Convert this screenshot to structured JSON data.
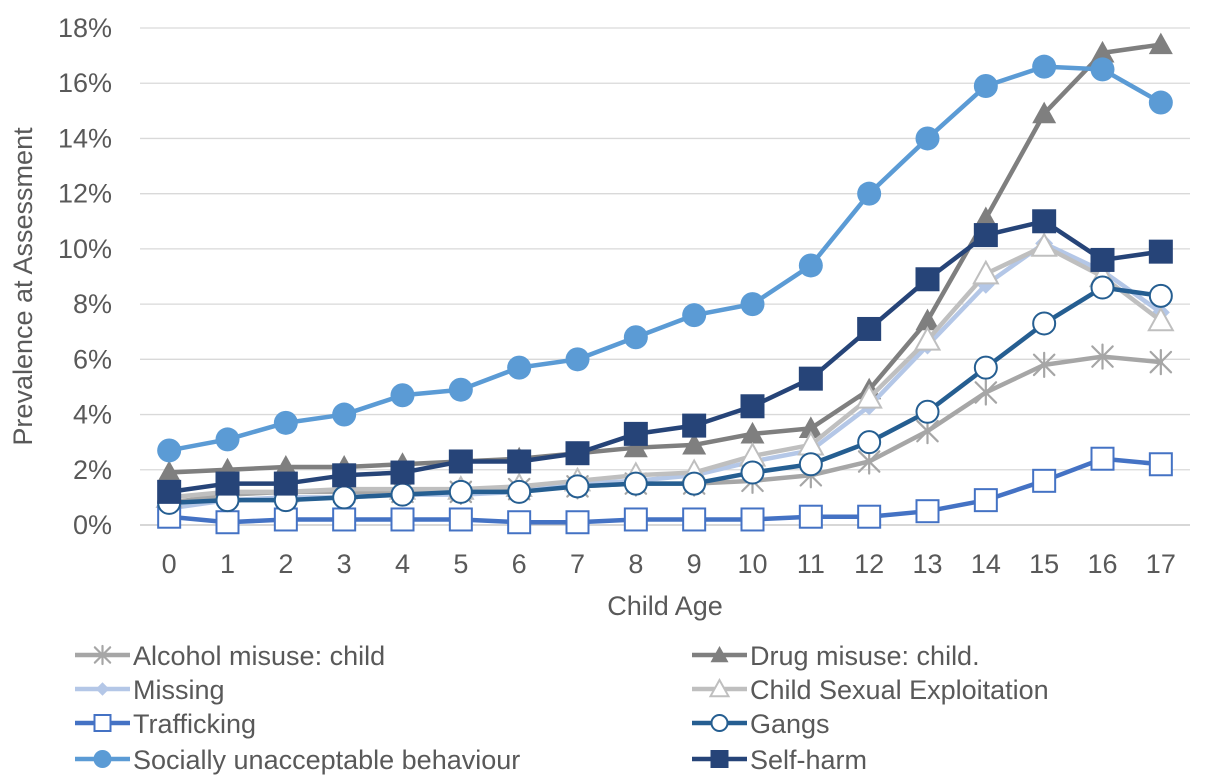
{
  "chart_data": {
    "type": "line",
    "title": "",
    "xlabel": "Child Age",
    "ylabel": "Prevalence at Assessment",
    "x": [
      "0",
      "1",
      "2",
      "3",
      "4",
      "5",
      "6",
      "7",
      "8",
      "9",
      "10",
      "11",
      "12",
      "13",
      "14",
      "15",
      "16",
      "17"
    ],
    "ylim": [
      0,
      18
    ],
    "yticks": [
      0,
      2,
      4,
      6,
      8,
      10,
      12,
      14,
      16,
      18
    ],
    "ytick_labels": [
      "0%",
      "2%",
      "4%",
      "6%",
      "8%",
      "10%",
      "12%",
      "14%",
      "16%",
      "18%"
    ],
    "grid": "horizontal",
    "legend_position": "bottom",
    "series": [
      {
        "name": "Alcohol misuse: child",
        "color": "#a6a6a6",
        "marker": "asterisk",
        "values": [
          0.8,
          1.1,
          1.2,
          1.2,
          1.2,
          1.2,
          1.3,
          1.4,
          1.5,
          1.5,
          1.6,
          1.8,
          2.3,
          3.4,
          4.8,
          5.8,
          6.1,
          5.9
        ]
      },
      {
        "name": "Drug misuse: child.",
        "color": "#7f7f7f",
        "marker": "triangle",
        "values": [
          1.9,
          2.0,
          2.1,
          2.1,
          2.2,
          2.3,
          2.4,
          2.6,
          2.8,
          2.9,
          3.3,
          3.5,
          4.9,
          7.4,
          11.1,
          14.9,
          17.1,
          17.4
        ]
      },
      {
        "name": "Missing",
        "color": "#b4c7e7",
        "marker": "diamond",
        "values": [
          0.6,
          0.9,
          1.0,
          1.0,
          1.1,
          1.1,
          1.2,
          1.5,
          1.6,
          1.8,
          2.3,
          2.7,
          4.3,
          6.5,
          8.7,
          10.2,
          9.2,
          7.7
        ]
      },
      {
        "name": "Child Sexual Exploitation",
        "color": "#bfbfbf",
        "marker": "triangle-open",
        "values": [
          1.0,
          1.2,
          1.2,
          1.3,
          1.3,
          1.3,
          1.4,
          1.6,
          1.8,
          1.9,
          2.5,
          2.9,
          4.6,
          6.7,
          9.1,
          10.1,
          9.0,
          7.4
        ]
      },
      {
        "name": "Trafficking",
        "color": "#4472c4",
        "marker": "square-open",
        "values": [
          0.3,
          0.1,
          0.2,
          0.2,
          0.2,
          0.2,
          0.1,
          0.1,
          0.2,
          0.2,
          0.2,
          0.3,
          0.3,
          0.5,
          0.9,
          1.6,
          2.4,
          2.2
        ]
      },
      {
        "name": "Gangs",
        "color": "#255e91",
        "marker": "circle-open",
        "values": [
          0.8,
          0.9,
          0.9,
          1.0,
          1.1,
          1.2,
          1.2,
          1.4,
          1.5,
          1.5,
          1.9,
          2.2,
          3.0,
          4.1,
          5.7,
          7.3,
          8.6,
          8.3
        ]
      },
      {
        "name": "Socially unacceptable behaviour",
        "color": "#5b9bd5",
        "marker": "circle",
        "values": [
          2.7,
          3.1,
          3.7,
          4.0,
          4.7,
          4.9,
          5.7,
          6.0,
          6.8,
          7.6,
          8.0,
          9.4,
          12.0,
          14.0,
          15.9,
          16.6,
          16.5,
          15.3
        ]
      },
      {
        "name": "Self-harm",
        "color": "#264478",
        "marker": "square",
        "values": [
          1.2,
          1.5,
          1.5,
          1.8,
          1.9,
          2.3,
          2.3,
          2.6,
          3.3,
          3.6,
          4.3,
          5.3,
          7.1,
          8.9,
          10.5,
          11.0,
          9.6,
          9.9
        ]
      }
    ]
  }
}
